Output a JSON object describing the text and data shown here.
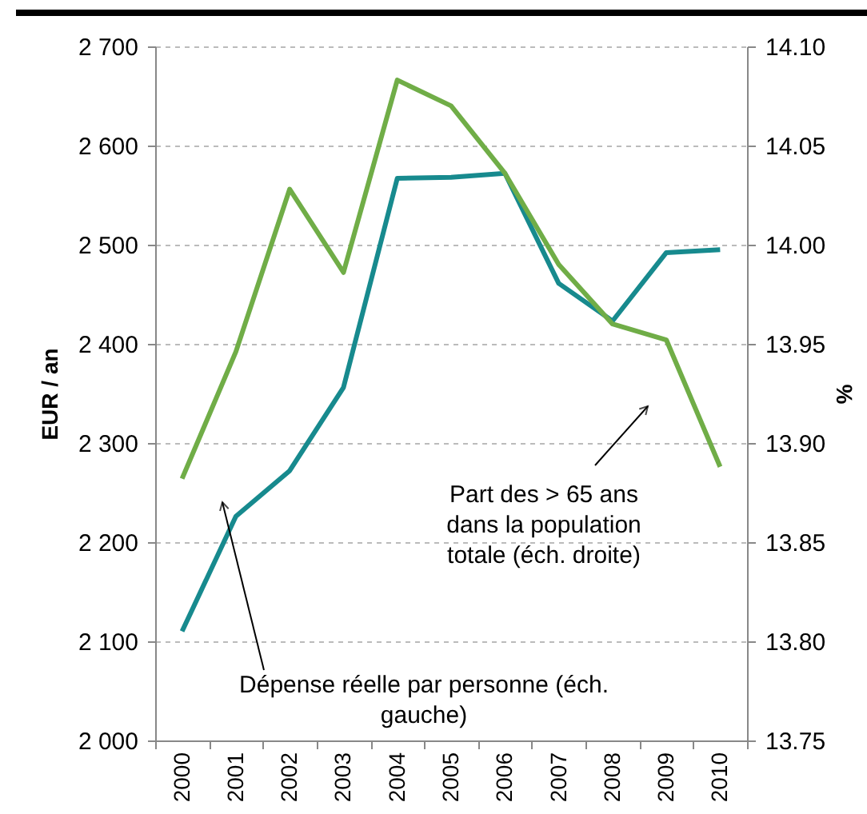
{
  "chart_data": {
    "type": "line",
    "ylabel": "EUR / an",
    "y2label": "%",
    "categories": [
      "2000",
      "2001",
      "2002",
      "2003",
      "2004",
      "2005",
      "2006",
      "2007",
      "2008",
      "2009",
      "2010"
    ],
    "series": [
      {
        "color": "#178a8e",
        "values": [
          2110,
          2226,
          2272,
          2356,
          2567,
          2568,
          2572,
          2461,
          2423,
          2492,
          2495
        ]
      },
      {
        "color": "#70ad47",
        "axis": "y2",
        "values": [
          13.882,
          13.946,
          14.028,
          13.986,
          14.083,
          14.07,
          14.036,
          13.99,
          13.96,
          13.952,
          13.888
        ]
      }
    ],
    "ylim": [
      2000,
      2700
    ],
    "yticks": [
      {
        "value": 2000,
        "label": "2 000"
      },
      {
        "value": 2100,
        "label": "2 100"
      },
      {
        "value": 2200,
        "label": "2 200"
      },
      {
        "value": 2300,
        "label": "2 300"
      },
      {
        "value": 2400,
        "label": "2 400"
      },
      {
        "value": 2500,
        "label": "2 500"
      },
      {
        "value": 2600,
        "label": "2 600"
      },
      {
        "value": 2700,
        "label": "2 700"
      }
    ],
    "y2lim": [
      13.75,
      14.1
    ],
    "y2ticks": [
      {
        "value": 13.75,
        "label": "13.75"
      },
      {
        "value": 13.8,
        "label": "13.80"
      },
      {
        "value": 13.85,
        "label": "13.85"
      },
      {
        "value": 13.9,
        "label": "13.90"
      },
      {
        "value": 13.95,
        "label": "13.95"
      },
      {
        "value": 14.0,
        "label": "14.00"
      },
      {
        "value": 14.05,
        "label": "14.05"
      },
      {
        "value": 14.1,
        "label": "14.10"
      }
    ],
    "grid": "y",
    "marker": "none",
    "line_style": "solid",
    "annotations": [
      "Dépense réelle par personne (éch.\ngauche)",
      "Part des > 65 ans\ndans la population\ntotale (éch. droite)"
    ]
  }
}
